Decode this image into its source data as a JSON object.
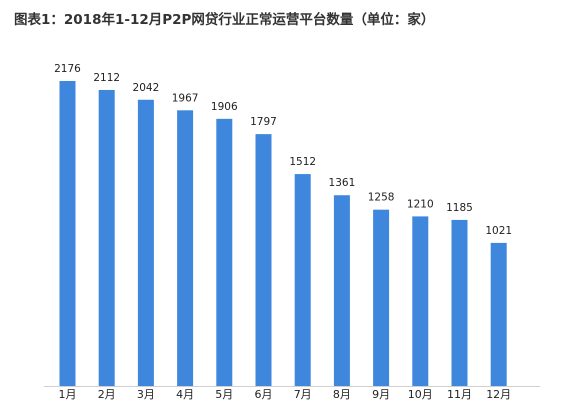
{
  "chart_data": {
    "type": "bar",
    "title": "图表1：2018年1-12月P2P网贷行业正常运营平台数量（单位：家）",
    "categories": [
      "1月",
      "2月",
      "3月",
      "4月",
      "5月",
      "6月",
      "7月",
      "8月",
      "9月",
      "10月",
      "11月",
      "12月"
    ],
    "values": [
      2176,
      2112,
      2042,
      1967,
      1906,
      1797,
      1512,
      1361,
      1258,
      1210,
      1185,
      1021
    ],
    "xlabel": "",
    "ylabel": "",
    "ylim": [
      0,
      2400
    ],
    "grid": false,
    "legend": "none",
    "bar_color": "#3F86DD",
    "axis_color": "#D0D0D0",
    "text_color": "#222222"
  }
}
